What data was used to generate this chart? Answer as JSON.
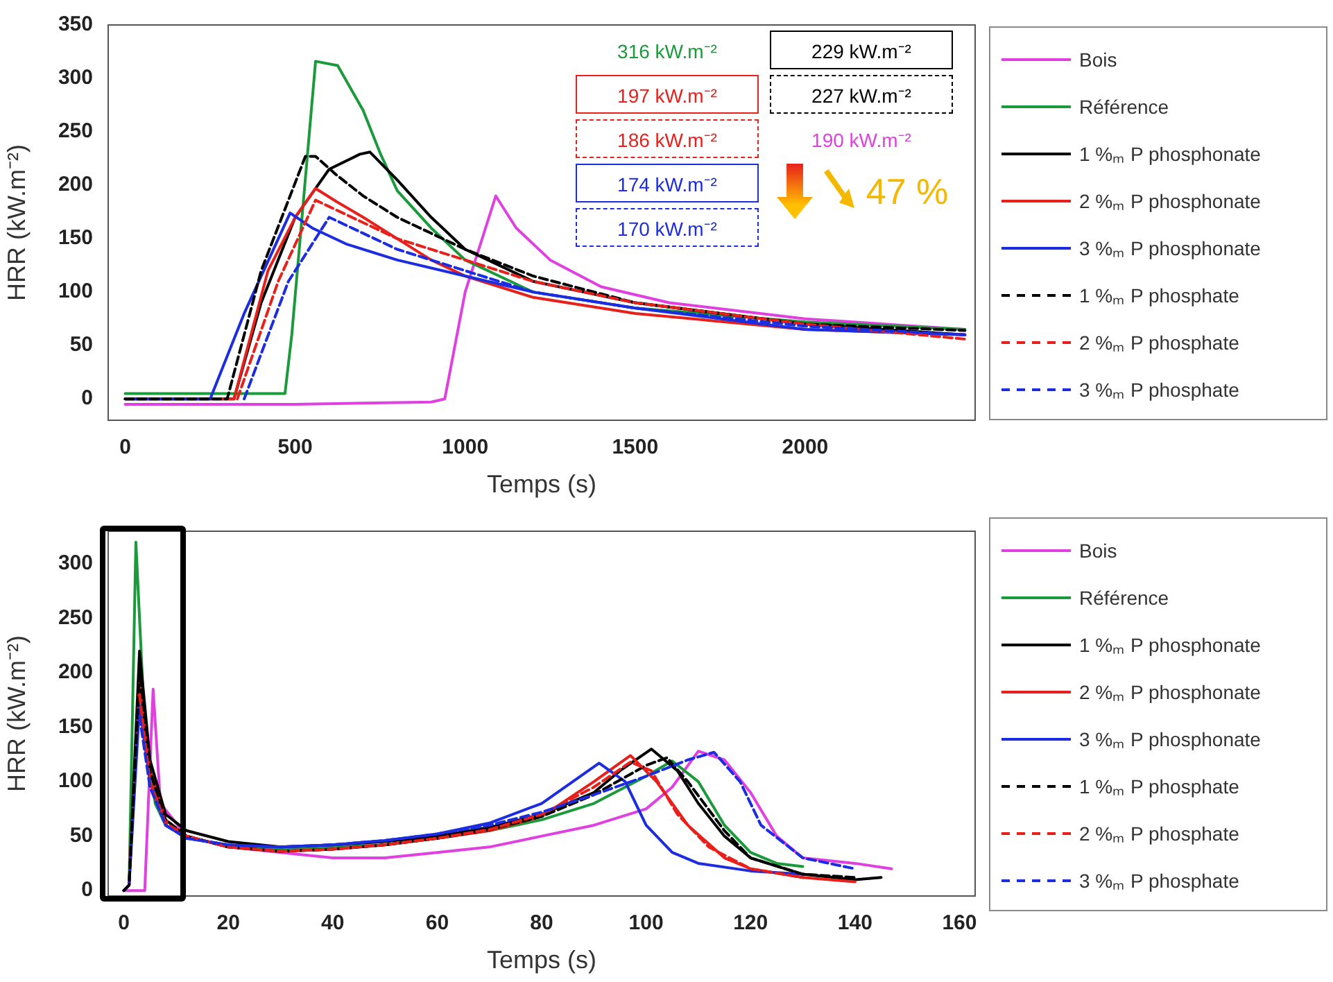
{
  "chart_data": [
    {
      "type": "line",
      "xlabel": "Temps (s)",
      "ylabel": "HRR (kW.m⁻²)",
      "xlim": [
        -50,
        2500
      ],
      "xticks": [
        0,
        500,
        1000,
        1500,
        2000
      ],
      "ylim": [
        -20,
        350
      ],
      "yticks": [
        0,
        50,
        100,
        150,
        200,
        250,
        300,
        350
      ],
      "legend": "right",
      "marker": "none",
      "grid": false,
      "annotations": [
        "316 kW.m⁻²",
        "197 kW.m⁻²",
        "186 kW.m⁻²",
        "229 kW.m⁻²",
        "227 kW.m⁻²",
        "190 kW.m⁻²",
        "174 kW.m⁻²",
        "170 kW.m⁻²",
        "47 %"
      ],
      "series": [
        {
          "name": "Bois",
          "color": "#e040e0",
          "line_style": "solid",
          "x": [
            0,
            500,
            900,
            940,
            1000,
            1090,
            1150,
            1250,
            1400,
            1600,
            2000,
            2470
          ],
          "values": [
            -5,
            -5,
            -3,
            0,
            100,
            190,
            160,
            130,
            105,
            90,
            75,
            65
          ]
        },
        {
          "name": "Référence",
          "color": "#1a9a3a",
          "line_style": "solid",
          "x": [
            0,
            300,
            470,
            490,
            560,
            625,
            700,
            750,
            800,
            900,
            1000,
            1200,
            1500,
            2000,
            2470
          ],
          "values": [
            5,
            5,
            5,
            60,
            316,
            312,
            270,
            230,
            195,
            160,
            130,
            100,
            85,
            72,
            65
          ]
        },
        {
          "name": "1 %ₘ P phosphonate",
          "color": "#000000",
          "line_style": "solid",
          "x": [
            0,
            200,
            320,
            400,
            500,
            600,
            690,
            720,
            800,
            900,
            1000,
            1200,
            1500,
            2000,
            2470
          ],
          "values": [
            0,
            0,
            0,
            90,
            170,
            215,
            229,
            231,
            205,
            170,
            140,
            110,
            90,
            70,
            60
          ]
        },
        {
          "name": "2 %ₘ P phosphonate",
          "color": "#e8201c",
          "line_style": "solid",
          "x": [
            0,
            200,
            320,
            420,
            500,
            560,
            620,
            700,
            800,
            900,
            1000,
            1200,
            1500,
            2000,
            2470
          ],
          "values": [
            0,
            0,
            0,
            120,
            170,
            197,
            185,
            170,
            150,
            130,
            115,
            95,
            80,
            65,
            60
          ]
        },
        {
          "name": "3 %ₘ P phosphonate",
          "color": "#1c2ce0",
          "line_style": "solid",
          "x": [
            0,
            200,
            250,
            350,
            485,
            550,
            650,
            800,
            1000,
            1200,
            1500,
            2000,
            2470
          ],
          "values": [
            0,
            0,
            0,
            80,
            174,
            160,
            145,
            130,
            115,
            100,
            85,
            65,
            60
          ]
        },
        {
          "name": "1 %ₘ P phosphate",
          "color": "#000000",
          "line_style": "dashed",
          "x": [
            0,
            250,
            300,
            400,
            530,
            560,
            620,
            700,
            800,
            1000,
            1200,
            1500,
            2000,
            2470
          ],
          "values": [
            0,
            0,
            0,
            120,
            227,
            227,
            210,
            190,
            170,
            140,
            115,
            90,
            70,
            64
          ]
        },
        {
          "name": "2 %ₘ P phosphate",
          "color": "#e8201c",
          "line_style": "dashed",
          "x": [
            330,
            450,
            560,
            600,
            700,
            800,
            1000,
            1200,
            1500,
            2000,
            2470
          ],
          "values": [
            0,
            110,
            186,
            180,
            165,
            150,
            130,
            110,
            90,
            70,
            56
          ]
        },
        {
          "name": "3 %ₘ P phosphate",
          "color": "#1c2ce0",
          "line_style": "dashed",
          "x": [
            350,
            480,
            600,
            700,
            800,
            1000,
            1200,
            1500,
            2000,
            2470
          ],
          "values": [
            0,
            110,
            170,
            155,
            140,
            120,
            100,
            85,
            68,
            60
          ]
        }
      ]
    },
    {
      "type": "line",
      "xlabel": "Temps (s)",
      "ylabel": "HRR (kW.m⁻²)",
      "xlim": [
        -3,
        163
      ],
      "xticks": [
        0,
        20,
        40,
        60,
        80,
        100,
        120,
        140,
        160
      ],
      "ylim": [
        -5,
        330
      ],
      "yticks": [
        0,
        50,
        100,
        150,
        200,
        250,
        300
      ],
      "legend": "right",
      "marker": "none",
      "grid": false,
      "series": [
        {
          "name": "Bois",
          "color": "#e040e0",
          "line_style": "solid",
          "x": [
            0,
            4,
            5.6,
            7,
            12,
            20,
            30,
            40,
            50,
            60,
            70,
            80,
            90,
            100,
            105,
            110,
            115,
            120,
            125,
            130,
            140,
            147
          ],
          "values": [
            0,
            0,
            185,
            80,
            50,
            40,
            35,
            30,
            30,
            35,
            40,
            50,
            60,
            75,
            95,
            128,
            120,
            90,
            50,
            30,
            25,
            20
          ]
        },
        {
          "name": "Référence",
          "color": "#1a9a3a",
          "line_style": "solid",
          "x": [
            0,
            1,
            2.3,
            4,
            6,
            8,
            12,
            20,
            30,
            40,
            50,
            60,
            70,
            80,
            90,
            100,
            105,
            110,
            115,
            120,
            125,
            130
          ],
          "values": [
            0,
            5,
            320,
            150,
            80,
            60,
            50,
            40,
            38,
            40,
            42,
            48,
            55,
            65,
            80,
            105,
            119,
            100,
            60,
            35,
            25,
            22
          ]
        },
        {
          "name": "1 %ₘ P phosphonate",
          "color": "#000000",
          "line_style": "solid",
          "x": [
            0,
            1,
            3,
            5,
            8,
            12,
            20,
            30,
            40,
            50,
            60,
            70,
            80,
            90,
            95,
            101,
            106,
            110,
            115,
            120,
            130,
            140,
            145
          ],
          "values": [
            0,
            5,
            220,
            120,
            70,
            55,
            45,
            40,
            42,
            45,
            50,
            58,
            70,
            90,
            110,
            130,
            110,
            80,
            50,
            30,
            15,
            10,
            12
          ]
        },
        {
          "name": "2 %ₘ P phosphonate",
          "color": "#e8201c",
          "line_style": "solid",
          "x": [
            0,
            1,
            3,
            5,
            8,
            12,
            20,
            30,
            40,
            50,
            60,
            70,
            80,
            90,
            97,
            102,
            108,
            115,
            120,
            130,
            140
          ],
          "values": [
            0,
            5,
            190,
            110,
            65,
            50,
            40,
            36,
            38,
            42,
            48,
            55,
            68,
            100,
            124,
            100,
            60,
            30,
            20,
            12,
            8
          ]
        },
        {
          "name": "3 %ₘ P phosphonate",
          "color": "#1c2ce0",
          "line_style": "solid",
          "x": [
            0,
            1,
            3,
            5,
            8,
            12,
            20,
            30,
            40,
            50,
            60,
            70,
            80,
            91,
            96,
            100,
            105,
            110,
            120,
            130
          ],
          "values": [
            0,
            5,
            170,
            100,
            60,
            48,
            42,
            40,
            42,
            46,
            52,
            62,
            80,
            117,
            100,
            60,
            35,
            25,
            18,
            15
          ]
        },
        {
          "name": "1 %ₘ P phosphate",
          "color": "#000000",
          "line_style": "dashed",
          "x": [
            0,
            1,
            3,
            5,
            8,
            12,
            20,
            30,
            40,
            50,
            60,
            70,
            80,
            90,
            100,
            104,
            108,
            115,
            120,
            130,
            140
          ],
          "values": [
            0,
            5,
            200,
            110,
            65,
            50,
            40,
            36,
            38,
            42,
            48,
            56,
            68,
            88,
            115,
            122,
            100,
            55,
            30,
            15,
            12
          ]
        },
        {
          "name": "2 %ₘ P phosphate",
          "color": "#e8201c",
          "line_style": "dashed",
          "x": [
            3,
            5,
            8,
            12,
            20,
            30,
            40,
            50,
            60,
            70,
            80,
            90,
            97,
            101,
            106,
            112,
            120,
            130
          ],
          "values": [
            180,
            100,
            62,
            50,
            40,
            36,
            38,
            42,
            48,
            56,
            70,
            95,
            118,
            110,
            70,
            40,
            20,
            12
          ]
        },
        {
          "name": "3 %ₘ P phosphate",
          "color": "#1c2ce0",
          "line_style": "dashed",
          "x": [
            3,
            5,
            8,
            12,
            20,
            30,
            40,
            50,
            60,
            70,
            80,
            90,
            100,
            108,
            113,
            118,
            122,
            130,
            140
          ],
          "values": [
            160,
            95,
            60,
            48,
            42,
            40,
            42,
            46,
            52,
            60,
            72,
            88,
            105,
            120,
            127,
            100,
            60,
            30,
            20
          ]
        }
      ]
    }
  ]
}
